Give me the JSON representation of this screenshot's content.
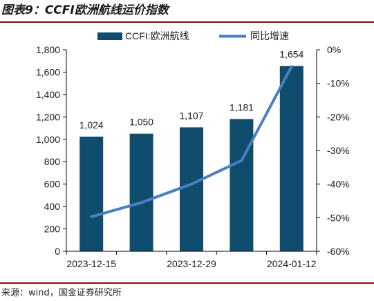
{
  "header": {
    "title": "图表9：CCFI欧洲航线运价指数"
  },
  "footer": {
    "source": "来源：wind，国金证券研究所"
  },
  "colors": {
    "bar": "#0f4c6e",
    "line": "#4a7fc0",
    "rule": "#7a0d10",
    "text": "#1a1a1a"
  },
  "chart_data": {
    "type": "bar",
    "categories": [
      "2023-12-15",
      "",
      "2023-12-29",
      "",
      "2024-01-12"
    ],
    "series": [
      {
        "name": "CCFI:欧洲航线",
        "type": "bar",
        "axis": "left",
        "values": [
          1024,
          1050,
          1107,
          1181,
          1654
        ]
      },
      {
        "name": "同比增速",
        "type": "line",
        "axis": "right",
        "values": [
          -49.7,
          -45.5,
          -40,
          -33,
          -5
        ]
      }
    ],
    "data_labels": [
      "1,024",
      "1,050",
      "1,107",
      "1,181",
      "1,654"
    ],
    "y_left": {
      "ylim": [
        0,
        1800
      ],
      "ticks": [
        "0",
        "200",
        "400",
        "600",
        "800",
        "1,000",
        "1,200",
        "1,400",
        "1,600",
        "1,800"
      ]
    },
    "y_right": {
      "ylim": [
        -60,
        0
      ],
      "ticks": [
        "-60%",
        "-50%",
        "-40%",
        "-30%",
        "-20%",
        "-10%",
        "0%"
      ]
    },
    "legend": {
      "position": "top",
      "entries": [
        "CCFI:欧洲航线",
        "同比增速"
      ]
    },
    "grid": false
  }
}
